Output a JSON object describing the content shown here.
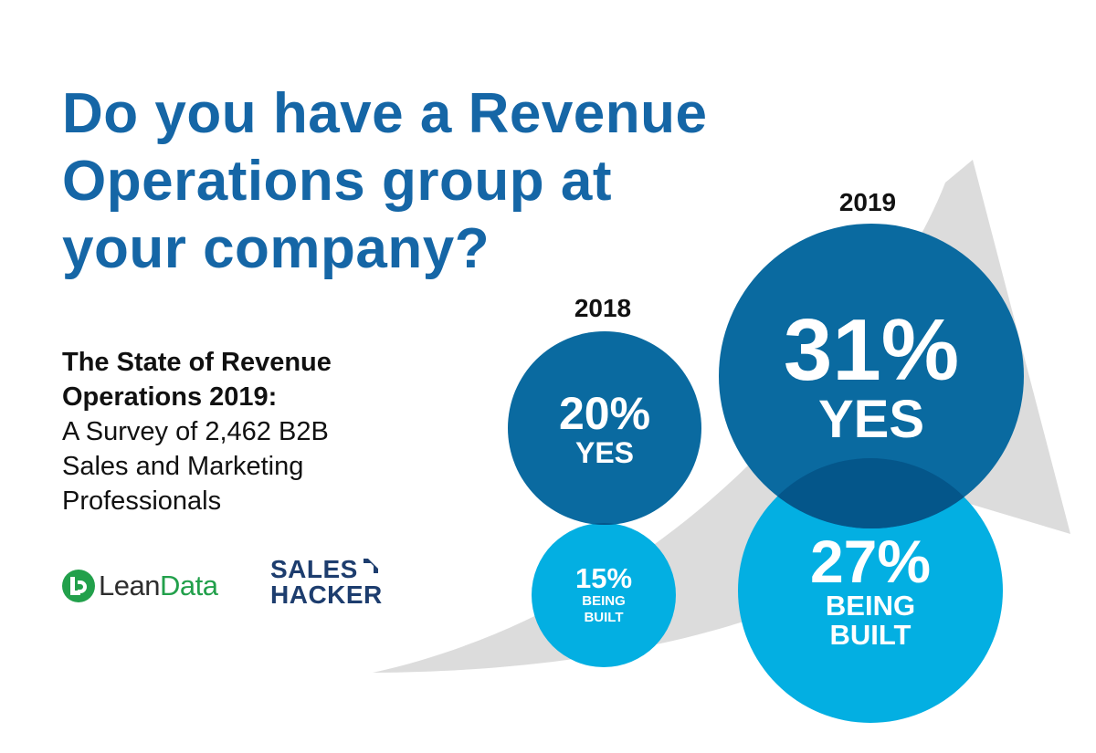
{
  "headline": {
    "lines": [
      "Do you have a Revenue",
      "Operations group at",
      "your company?"
    ]
  },
  "subtitle": {
    "bold_lines": [
      "The State of Revenue",
      "Operations 2019:"
    ],
    "lines": [
      "A Survey of 2,462 B2B",
      "Sales and Marketing",
      "Professionals"
    ]
  },
  "logos": {
    "leandata": {
      "prefix": "Lean",
      "suffix": "Data",
      "mark": "leandata-logo-mark"
    },
    "saleshacker": {
      "line1": "SALES",
      "line2": "HACKER",
      "mark": "saleshacker-arrow-mark"
    }
  },
  "colors": {
    "headline": "#1566a6",
    "yes": "#0a6aa0",
    "being_built": "#03afe2",
    "arrow": "#dcdcdc",
    "leandata_green": "#22a04b",
    "saleshacker_navy": "#1d3d6e"
  },
  "chart_data": {
    "type": "bubble",
    "title": "Do you have a Revenue Operations group at your company?",
    "categories": [
      "2018",
      "2019"
    ],
    "series": [
      {
        "name": "YES",
        "values": [
          20,
          31
        ],
        "labels": [
          "20%",
          "31%"
        ],
        "color": "#0a6aa0"
      },
      {
        "name": "BEING BUILT",
        "values": [
          15,
          27
        ],
        "labels": [
          "15%",
          "27%"
        ],
        "color": "#03afe2"
      }
    ],
    "unit": "%"
  }
}
